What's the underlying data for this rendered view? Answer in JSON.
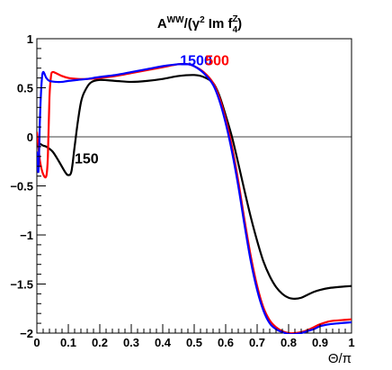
{
  "chart_data": {
    "type": "line",
    "title": "A^WW/(γ² Im f₄^Z)",
    "title_parts": {
      "base": "A",
      "sup1": "WW",
      "mid": "/(γ",
      "sup2": "2",
      "mid2": " Im f",
      "sup3": "Z",
      "sub3": "4",
      "end": ")"
    },
    "xlabel": "Θ/π",
    "ylabel": "",
    "xlim": [
      0,
      1
    ],
    "ylim": [
      -2,
      1
    ],
    "x_ticks": [
      0,
      0.1,
      0.2,
      0.3,
      0.4,
      0.5,
      0.6,
      0.7,
      0.8,
      0.9,
      1
    ],
    "x_tick_labels": [
      "0",
      "0.1",
      "0.2",
      "0.3",
      "0.4",
      "0.5",
      "0.6",
      "0.7",
      "0.8",
      "0.9",
      "1"
    ],
    "y_ticks": [
      -2,
      -1.5,
      -1,
      -0.5,
      0,
      0.5,
      1
    ],
    "y_tick_labels": [
      "−2",
      "−1.5",
      "−1",
      "−0.5",
      "0",
      "0.5",
      "1"
    ],
    "zero_line": true,
    "grid": false,
    "series": [
      {
        "name": "150",
        "color": "#000000",
        "x": [
          0,
          0.01,
          0.02,
          0.03,
          0.05,
          0.07,
          0.09,
          0.1,
          0.11,
          0.12,
          0.13,
          0.14,
          0.15,
          0.17,
          0.2,
          0.25,
          0.3,
          0.35,
          0.4,
          0.45,
          0.5,
          0.53,
          0.56,
          0.58,
          0.6,
          0.62,
          0.64,
          0.66,
          0.68,
          0.7,
          0.72,
          0.74,
          0.76,
          0.78,
          0.8,
          0.82,
          0.84,
          0.86,
          0.88,
          0.9,
          0.93,
          0.96,
          1.0
        ],
        "y": [
          -0.05,
          -0.07,
          -0.09,
          -0.1,
          -0.15,
          -0.25,
          -0.36,
          -0.39,
          -0.35,
          -0.1,
          0.15,
          0.35,
          0.45,
          0.55,
          0.58,
          0.57,
          0.56,
          0.57,
          0.59,
          0.62,
          0.63,
          0.61,
          0.55,
          0.42,
          0.22,
          0.0,
          -0.27,
          -0.55,
          -0.82,
          -1.06,
          -1.27,
          -1.42,
          -1.53,
          -1.6,
          -1.64,
          -1.65,
          -1.64,
          -1.61,
          -1.58,
          -1.56,
          -1.54,
          -1.53,
          -1.52
        ]
      },
      {
        "name": "500",
        "color": "#ff0000",
        "x": [
          0,
          0.005,
          0.01,
          0.02,
          0.03,
          0.035,
          0.04,
          0.045,
          0.05,
          0.06,
          0.08,
          0.1,
          0.13,
          0.16,
          0.2,
          0.25,
          0.3,
          0.35,
          0.4,
          0.45,
          0.48,
          0.5,
          0.53,
          0.56,
          0.58,
          0.6,
          0.62,
          0.64,
          0.66,
          0.68,
          0.7,
          0.72,
          0.74,
          0.76,
          0.78,
          0.8,
          0.82,
          0.84,
          0.86,
          0.88,
          0.9,
          0.93,
          0.96,
          1.0
        ],
        "y": [
          0.05,
          -0.1,
          -0.25,
          -0.38,
          -0.4,
          -0.2,
          0.4,
          0.62,
          0.66,
          0.65,
          0.62,
          0.6,
          0.59,
          0.59,
          0.6,
          0.62,
          0.65,
          0.68,
          0.71,
          0.74,
          0.74,
          0.72,
          0.66,
          0.55,
          0.4,
          0.18,
          -0.1,
          -0.45,
          -0.85,
          -1.22,
          -1.52,
          -1.74,
          -1.87,
          -1.94,
          -1.98,
          -2.0,
          -2.0,
          -1.99,
          -1.97,
          -1.94,
          -1.91,
          -1.88,
          -1.87,
          -1.86
        ]
      },
      {
        "name": "1500",
        "color": "#0000ff",
        "x": [
          0,
          0.005,
          0.01,
          0.015,
          0.02,
          0.03,
          0.04,
          0.06,
          0.08,
          0.1,
          0.13,
          0.16,
          0.2,
          0.25,
          0.3,
          0.35,
          0.4,
          0.45,
          0.48,
          0.5,
          0.53,
          0.56,
          0.58,
          0.6,
          0.62,
          0.64,
          0.66,
          0.68,
          0.7,
          0.72,
          0.74,
          0.76,
          0.78,
          0.8,
          0.82,
          0.84,
          0.86,
          0.88,
          0.9,
          0.93,
          0.96,
          1.0
        ],
        "y": [
          -0.15,
          -0.35,
          0.2,
          0.55,
          0.66,
          0.6,
          0.57,
          0.56,
          0.56,
          0.57,
          0.58,
          0.59,
          0.61,
          0.63,
          0.66,
          0.69,
          0.72,
          0.74,
          0.74,
          0.72,
          0.65,
          0.53,
          0.37,
          0.14,
          -0.15,
          -0.5,
          -0.9,
          -1.27,
          -1.56,
          -1.77,
          -1.9,
          -1.96,
          -1.99,
          -2.01,
          -2.01,
          -2.0,
          -1.98,
          -1.96,
          -1.93,
          -1.91,
          -1.9,
          -1.89
        ]
      }
    ],
    "series_label_positions": [
      {
        "series": "150",
        "x": 0.12,
        "y": -0.27
      },
      {
        "series": "1500",
        "x": 0.455,
        "y": 0.73
      },
      {
        "series": "500",
        "x": 0.535,
        "y": 0.73
      }
    ]
  }
}
